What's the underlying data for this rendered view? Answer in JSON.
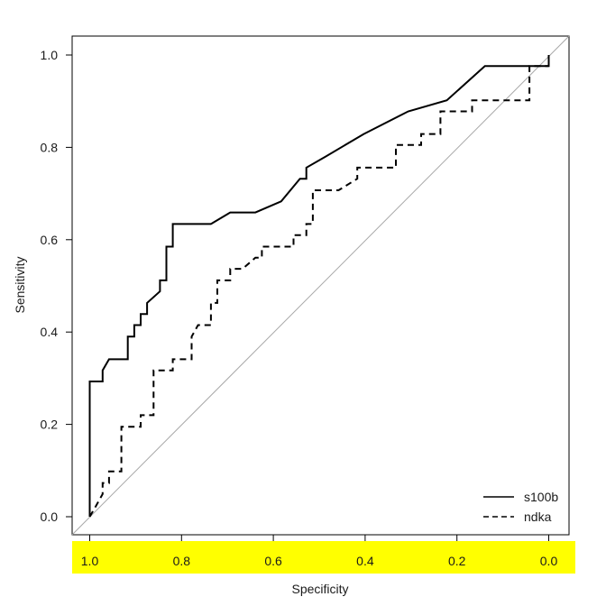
{
  "chart_data": {
    "type": "line",
    "title": "",
    "xlabel": "Specificity",
    "ylabel": "Sensitivity",
    "xlim": [
      1.0,
      0.0
    ],
    "ylim": [
      0.0,
      1.0
    ],
    "x_reversed": true,
    "xticks": [
      "1.0",
      "0.8",
      "0.6",
      "0.4",
      "0.2",
      "0.0"
    ],
    "yticks": [
      "0.0",
      "0.2",
      "0.4",
      "0.6",
      "0.8",
      "1.0"
    ],
    "x_tick_band_color": "#ffff00",
    "diagonal_reference": true,
    "legend_position": "bottom-right",
    "series": [
      {
        "name": "s100b",
        "style": "solid",
        "x": [
          1.0,
          1.0,
          0.972,
          0.972,
          0.958,
          0.917,
          0.917,
          0.903,
          0.903,
          0.889,
          0.889,
          0.875,
          0.875,
          0.847,
          0.847,
          0.833,
          0.833,
          0.819,
          0.819,
          0.806,
          0.806,
          0.736,
          0.694,
          0.639,
          0.583,
          0.542,
          0.528,
          0.528,
          0.486,
          0.403,
          0.306,
          0.222,
          0.139,
          0.028,
          0.0,
          0.0,
          0.0
        ],
        "y": [
          0.0,
          0.293,
          0.293,
          0.317,
          0.341,
          0.341,
          0.39,
          0.39,
          0.415,
          0.415,
          0.439,
          0.439,
          0.463,
          0.488,
          0.512,
          0.512,
          0.585,
          0.585,
          0.634,
          0.634,
          0.634,
          0.634,
          0.659,
          0.659,
          0.683,
          0.732,
          0.732,
          0.756,
          0.78,
          0.829,
          0.878,
          0.902,
          0.976,
          0.976,
          0.976,
          1.0,
          1.0
        ]
      },
      {
        "name": "ndka",
        "style": "dashed",
        "x": [
          1.0,
          0.986,
          0.972,
          0.972,
          0.958,
          0.958,
          0.931,
          0.931,
          0.889,
          0.889,
          0.861,
          0.861,
          0.819,
          0.819,
          0.778,
          0.778,
          0.764,
          0.764,
          0.736,
          0.736,
          0.722,
          0.722,
          0.708,
          0.694,
          0.694,
          0.667,
          0.667,
          0.639,
          0.625,
          0.625,
          0.583,
          0.556,
          0.556,
          0.528,
          0.528,
          0.514,
          0.514,
          0.472,
          0.458,
          0.417,
          0.417,
          0.361,
          0.333,
          0.333,
          0.278,
          0.278,
          0.25,
          0.236,
          0.236,
          0.167,
          0.167,
          0.042,
          0.042,
          0.028,
          0.014,
          0.014,
          0.0
        ],
        "y": [
          0.0,
          0.024,
          0.049,
          0.073,
          0.073,
          0.098,
          0.098,
          0.195,
          0.195,
          0.22,
          0.22,
          0.317,
          0.317,
          0.341,
          0.341,
          0.39,
          0.415,
          0.415,
          0.415,
          0.463,
          0.463,
          0.512,
          0.512,
          0.512,
          0.537,
          0.537,
          0.537,
          0.561,
          0.561,
          0.585,
          0.585,
          0.585,
          0.61,
          0.61,
          0.634,
          0.634,
          0.707,
          0.707,
          0.707,
          0.732,
          0.756,
          0.756,
          0.756,
          0.805,
          0.805,
          0.829,
          0.829,
          0.829,
          0.878,
          0.878,
          0.902,
          0.902,
          0.976,
          0.976,
          0.976,
          0.976,
          0.976
        ]
      }
    ]
  }
}
